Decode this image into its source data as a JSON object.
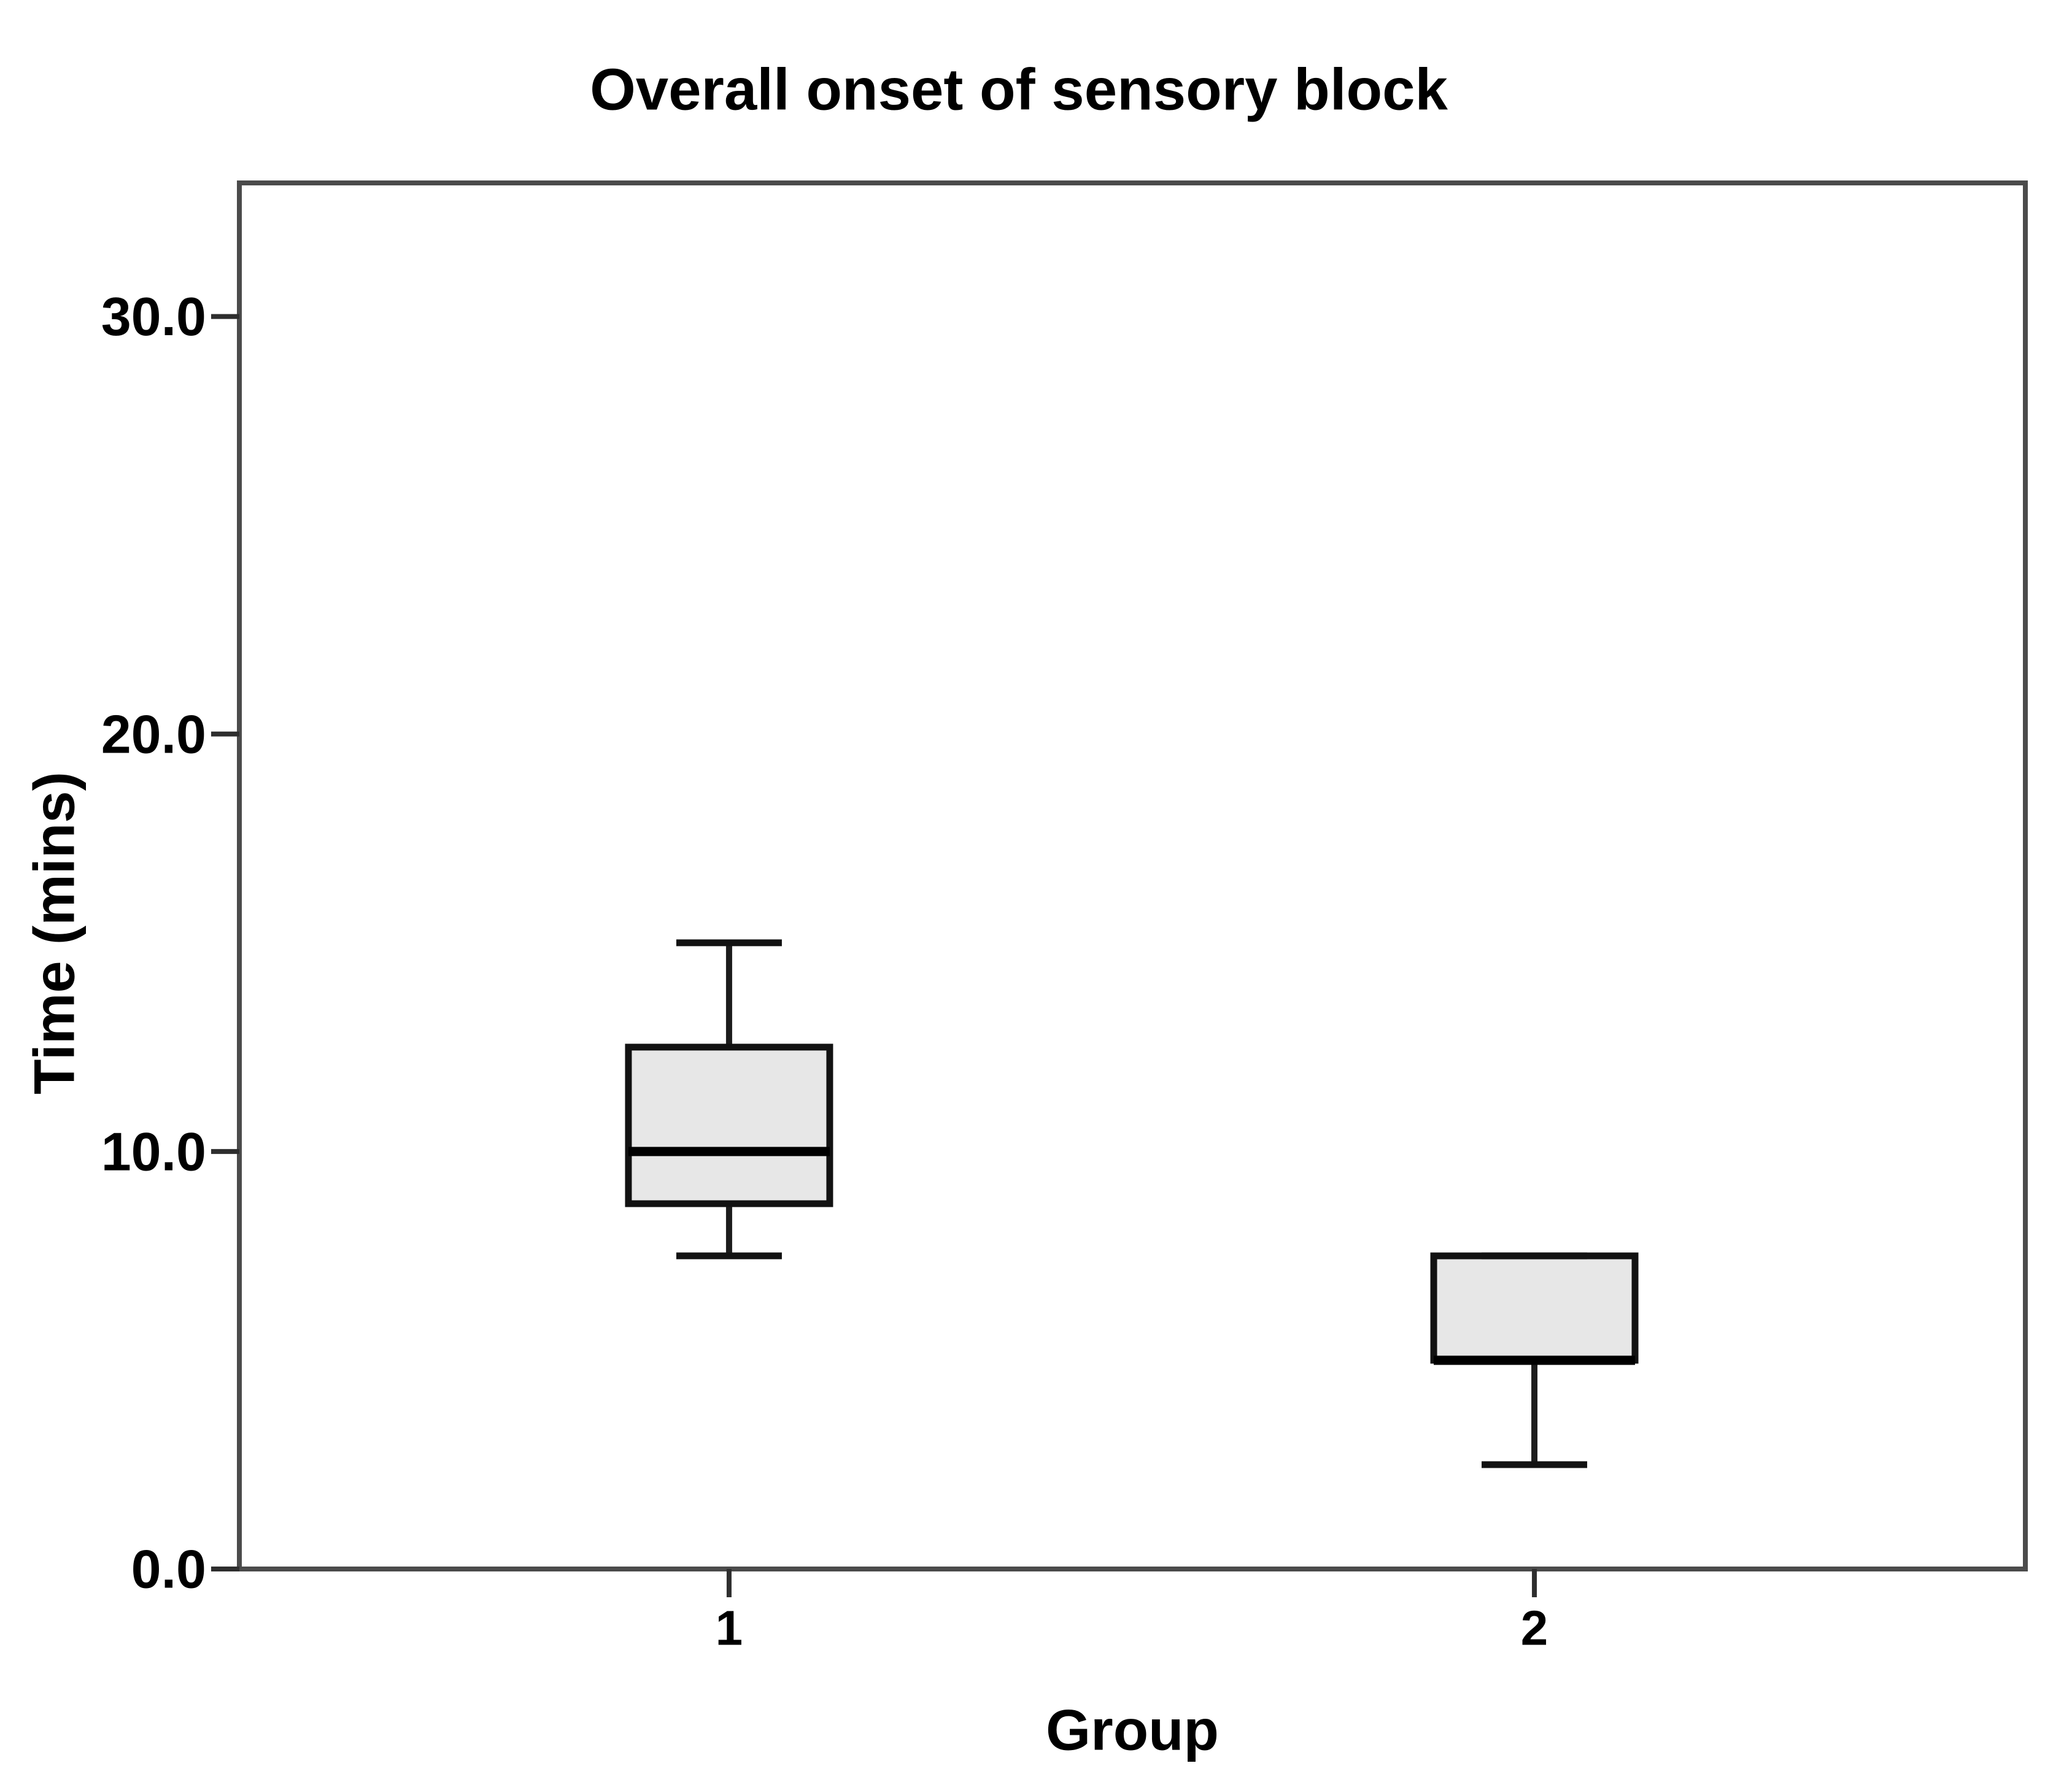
{
  "figure": {
    "background": "#ffffff"
  },
  "chart_data": {
    "type": "boxplot",
    "title": "Overall onset of sensory block",
    "xlabel": "Group",
    "ylabel": "Time (mins)",
    "categories": [
      "1",
      "2"
    ],
    "yticks": [
      0,
      10,
      20,
      30
    ],
    "ytick_labels": [
      "0.0",
      "10.0",
      "20.0",
      "30.0"
    ],
    "ylim": [
      0,
      33.2
    ],
    "grid": false,
    "legend": false,
    "series": [
      {
        "category": "1",
        "min": 7.5,
        "q1": 8.75,
        "median": 10.0,
        "q3": 12.5,
        "max": 15.0,
        "outliers": []
      },
      {
        "category": "2",
        "min": 2.5,
        "q1": 5.0,
        "median": 5.0,
        "q3": 7.5,
        "max": 7.5,
        "outliers": []
      }
    ],
    "colors": {
      "background": "#ffffff",
      "text": "#000000",
      "frame": "#4b4b4b",
      "tick": "#2e2e2e",
      "box_fill": "#e7e7e7",
      "box_border": "#121212",
      "median": "#000000",
      "whisker": "#1c1c1c"
    }
  }
}
